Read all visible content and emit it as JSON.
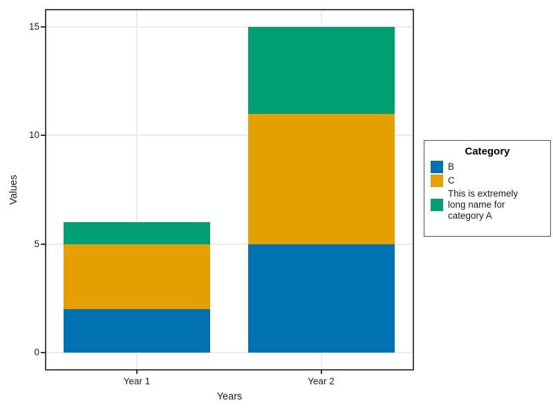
{
  "chart_data": {
    "type": "bar",
    "stacked": true,
    "title": "",
    "xlabel": "Years",
    "ylabel": "Values",
    "categories": [
      "Year 1",
      "Year 2"
    ],
    "series": [
      {
        "name": "B",
        "color": "#0072B2",
        "values": [
          2,
          5
        ]
      },
      {
        "name": "C",
        "color": "#E69F00",
        "values": [
          3,
          6
        ]
      },
      {
        "name": "This is extremely long name for category A",
        "color": "#009E73",
        "values": [
          1,
          4
        ]
      }
    ],
    "stack_totals": [
      6,
      15
    ],
    "ylim": [
      -0.75,
      15.75
    ],
    "yticks": [
      0,
      5,
      10,
      15
    ],
    "grid": {
      "horizontal_major": true,
      "vertical_at_categories": true,
      "minor": false
    },
    "legend": {
      "title": "Category",
      "position": "right"
    }
  },
  "colors": {
    "bar_blue": "#0072B2",
    "bar_orange": "#E69F00",
    "bar_green": "#009E73",
    "panel_border": "#454545",
    "gridline": "#EBEBEB",
    "tick_mark": "#333333",
    "text": "#1A1A1A",
    "legend_border": "#4D4D4D",
    "background": "#FFFFFF"
  }
}
